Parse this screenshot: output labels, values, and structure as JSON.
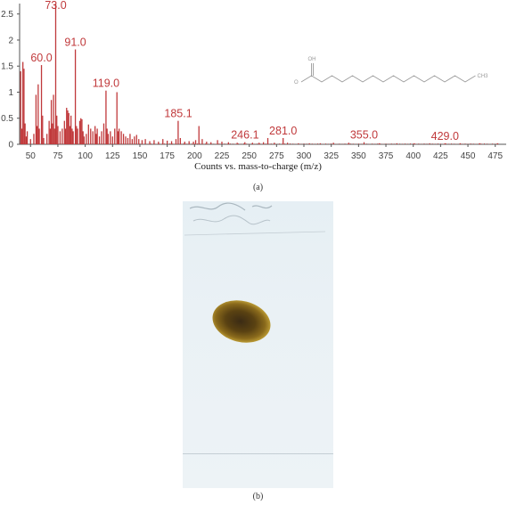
{
  "chart_data": {
    "type": "bar",
    "xlabel": "Counts vs. mass-to-charge (m/z)",
    "xlim": [
      40,
      485
    ],
    "ylim": [
      0,
      2.7
    ],
    "x_ticks": [
      50,
      75,
      100,
      125,
      150,
      175,
      200,
      225,
      250,
      275,
      300,
      325,
      350,
      375,
      400,
      425,
      450,
      475
    ],
    "y_ticks": [
      0,
      0.5,
      1,
      1.5,
      2,
      2.5
    ],
    "y_tick_labels": [
      "0",
      "0.5",
      "1",
      "1.5",
      "2",
      "2.5"
    ],
    "peak_labels": [
      {
        "text": "73.0",
        "x": 73.0,
        "y": 2.7
      },
      {
        "text": "60.0",
        "x": 60.0,
        "y": 1.52
      },
      {
        "text": "91.0",
        "x": 91.0,
        "y": 1.82
      },
      {
        "text": "119.0",
        "x": 119.0,
        "y": 1.03
      },
      {
        "text": "185.1",
        "x": 185.1,
        "y": 0.45
      },
      {
        "text": "246.1",
        "x": 246.1,
        "y": 0.04
      },
      {
        "text": "281.0",
        "x": 281.0,
        "y": 0.12
      },
      {
        "text": "355.0",
        "x": 355.0,
        "y": 0.04
      },
      {
        "text": "429.0",
        "x": 429.0,
        "y": 0.02
      }
    ],
    "peaks": [
      {
        "x": 41,
        "y": 1.4
      },
      {
        "x": 42,
        "y": 0.3
      },
      {
        "x": 43,
        "y": 1.58
      },
      {
        "x": 44,
        "y": 1.45
      },
      {
        "x": 45,
        "y": 0.4
      },
      {
        "x": 46,
        "y": 0.15
      },
      {
        "x": 47,
        "y": 0.25
      },
      {
        "x": 50,
        "y": 0.1
      },
      {
        "x": 53,
        "y": 0.2
      },
      {
        "x": 55,
        "y": 0.95
      },
      {
        "x": 56,
        "y": 0.35
      },
      {
        "x": 57,
        "y": 1.15
      },
      {
        "x": 58,
        "y": 0.3
      },
      {
        "x": 60,
        "y": 1.52
      },
      {
        "x": 61,
        "y": 0.55
      },
      {
        "x": 62,
        "y": 0.12
      },
      {
        "x": 65,
        "y": 0.2
      },
      {
        "x": 67,
        "y": 0.45
      },
      {
        "x": 68,
        "y": 0.3
      },
      {
        "x": 69,
        "y": 0.85
      },
      {
        "x": 70,
        "y": 0.4
      },
      {
        "x": 71,
        "y": 0.95
      },
      {
        "x": 72,
        "y": 0.3
      },
      {
        "x": 73,
        "y": 2.7
      },
      {
        "x": 74,
        "y": 0.55
      },
      {
        "x": 75,
        "y": 0.35
      },
      {
        "x": 77,
        "y": 0.25
      },
      {
        "x": 79,
        "y": 0.3
      },
      {
        "x": 81,
        "y": 0.45
      },
      {
        "x": 82,
        "y": 0.3
      },
      {
        "x": 83,
        "y": 0.7
      },
      {
        "x": 84,
        "y": 0.65
      },
      {
        "x": 85,
        "y": 0.6
      },
      {
        "x": 86,
        "y": 0.35
      },
      {
        "x": 87,
        "y": 0.55
      },
      {
        "x": 88,
        "y": 0.3
      },
      {
        "x": 89,
        "y": 0.25
      },
      {
        "x": 91,
        "y": 1.82
      },
      {
        "x": 92,
        "y": 0.35
      },
      {
        "x": 93,
        "y": 0.3
      },
      {
        "x": 95,
        "y": 0.45
      },
      {
        "x": 96,
        "y": 0.5
      },
      {
        "x": 97,
        "y": 0.48
      },
      {
        "x": 98,
        "y": 0.25
      },
      {
        "x": 99,
        "y": 0.15
      },
      {
        "x": 101,
        "y": 0.2
      },
      {
        "x": 103,
        "y": 0.38
      },
      {
        "x": 105,
        "y": 0.3
      },
      {
        "x": 107,
        "y": 0.25
      },
      {
        "x": 109,
        "y": 0.35
      },
      {
        "x": 110,
        "y": 0.2
      },
      {
        "x": 111,
        "y": 0.3
      },
      {
        "x": 113,
        "y": 0.15
      },
      {
        "x": 115,
        "y": 0.25
      },
      {
        "x": 117,
        "y": 0.4
      },
      {
        "x": 119,
        "y": 1.03
      },
      {
        "x": 120,
        "y": 0.3
      },
      {
        "x": 121,
        "y": 0.2
      },
      {
        "x": 123,
        "y": 0.25
      },
      {
        "x": 125,
        "y": 0.15
      },
      {
        "x": 127,
        "y": 0.3
      },
      {
        "x": 129,
        "y": 1.0
      },
      {
        "x": 130,
        "y": 0.25
      },
      {
        "x": 131,
        "y": 0.3
      },
      {
        "x": 133,
        "y": 0.25
      },
      {
        "x": 135,
        "y": 0.2
      },
      {
        "x": 137,
        "y": 0.15
      },
      {
        "x": 139,
        "y": 0.12
      },
      {
        "x": 141,
        "y": 0.2
      },
      {
        "x": 143,
        "y": 0.1
      },
      {
        "x": 145,
        "y": 0.15
      },
      {
        "x": 147,
        "y": 0.18
      },
      {
        "x": 149,
        "y": 0.1
      },
      {
        "x": 152,
        "y": 0.08
      },
      {
        "x": 155,
        "y": 0.1
      },
      {
        "x": 159,
        "y": 0.06
      },
      {
        "x": 163,
        "y": 0.08
      },
      {
        "x": 167,
        "y": 0.05
      },
      {
        "x": 171,
        "y": 0.1
      },
      {
        "x": 175,
        "y": 0.07
      },
      {
        "x": 179,
        "y": 0.06
      },
      {
        "x": 183,
        "y": 0.1
      },
      {
        "x": 185,
        "y": 0.45
      },
      {
        "x": 187,
        "y": 0.12
      },
      {
        "x": 191,
        "y": 0.05
      },
      {
        "x": 195,
        "y": 0.06
      },
      {
        "x": 199,
        "y": 0.05
      },
      {
        "x": 201,
        "y": 0.08
      },
      {
        "x": 204,
        "y": 0.35
      },
      {
        "x": 207,
        "y": 0.1
      },
      {
        "x": 211,
        "y": 0.05
      },
      {
        "x": 215,
        "y": 0.04
      },
      {
        "x": 221,
        "y": 0.08
      },
      {
        "x": 225,
        "y": 0.05
      },
      {
        "x": 231,
        "y": 0.04
      },
      {
        "x": 239,
        "y": 0.03
      },
      {
        "x": 246,
        "y": 0.04
      },
      {
        "x": 253,
        "y": 0.03
      },
      {
        "x": 259,
        "y": 0.03
      },
      {
        "x": 263,
        "y": 0.04
      },
      {
        "x": 267,
        "y": 0.12
      },
      {
        "x": 273,
        "y": 0.03
      },
      {
        "x": 281,
        "y": 0.12
      },
      {
        "x": 285,
        "y": 0.03
      },
      {
        "x": 295,
        "y": 0.02
      },
      {
        "x": 305,
        "y": 0.02
      },
      {
        "x": 315,
        "y": 0.02
      },
      {
        "x": 327,
        "y": 0.03
      },
      {
        "x": 341,
        "y": 0.03
      },
      {
        "x": 355,
        "y": 0.04
      },
      {
        "x": 369,
        "y": 0.02
      },
      {
        "x": 385,
        "y": 0.02
      },
      {
        "x": 401,
        "y": 0.02
      },
      {
        "x": 415,
        "y": 0.02
      },
      {
        "x": 429,
        "y": 0.02
      },
      {
        "x": 443,
        "y": 0.02
      },
      {
        "x": 461,
        "y": 0.02
      },
      {
        "x": 477,
        "y": 0.02
      }
    ],
    "structure_labels": [
      "OH",
      "O",
      "CH3"
    ],
    "grid": false,
    "legend": "none"
  },
  "colors": {
    "peak": "#c0393b",
    "axis": "#555555",
    "structure": "#9a9a9a"
  },
  "captions": {
    "a": "(a)",
    "b": "(b)"
  }
}
